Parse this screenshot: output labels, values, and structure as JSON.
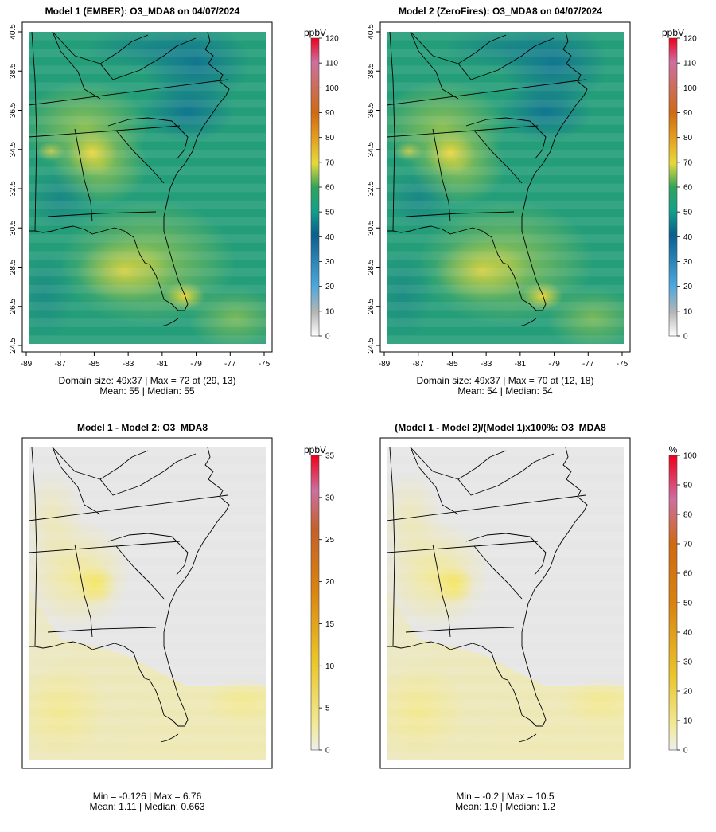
{
  "chart_data": [
    {
      "type": "heatmap",
      "title": "Model 1 (EMBER): O3_MDA8 on 04/07/2024",
      "grid_cols": 49,
      "grid_rows": 37,
      "lon_range": [
        -89,
        -75
      ],
      "lat_range": [
        24.5,
        40.5
      ],
      "x_ticks": [
        "-89",
        "-87",
        "-85",
        "-83",
        "-81",
        "-79",
        "-77",
        "-75"
      ],
      "y_ticks": [
        "24.5",
        "26.5",
        "28.5",
        "30.5",
        "32.5",
        "34.5",
        "36.5",
        "38.5",
        "40.5"
      ],
      "colorbar": {
        "unit": "ppbV",
        "range": [
          0,
          120
        ],
        "ticks": [
          "0",
          "10",
          "20",
          "30",
          "40",
          "50",
          "60",
          "70",
          "80",
          "90",
          "100",
          "110",
          "120"
        ]
      },
      "stats_line1": "Domain size: 49x37 | Max = 72 at (29, 13)",
      "stats_line2": "Mean: 55 |  Median: 55",
      "max": 72,
      "max_at": [
        29,
        13
      ],
      "mean": 55,
      "median": 55
    },
    {
      "type": "heatmap",
      "title": "Model 2 (ZeroFires): O3_MDA8 on 04/07/2024",
      "grid_cols": 49,
      "grid_rows": 37,
      "lon_range": [
        -89,
        -75
      ],
      "lat_range": [
        24.5,
        40.5
      ],
      "x_ticks": [
        "-89",
        "-87",
        "-85",
        "-83",
        "-81",
        "-79",
        "-77",
        "-75"
      ],
      "y_ticks": [
        "24.5",
        "26.5",
        "28.5",
        "30.5",
        "32.5",
        "34.5",
        "36.5",
        "38.5",
        "40.5"
      ],
      "colorbar": {
        "unit": "ppbV",
        "range": [
          0,
          120
        ],
        "ticks": [
          "0",
          "10",
          "20",
          "30",
          "40",
          "50",
          "60",
          "70",
          "80",
          "90",
          "100",
          "110",
          "120"
        ]
      },
      "stats_line1": "Domain size: 49x37 | Max = 70 at (12, 18)",
      "stats_line2": "Mean: 54 |  Median: 54",
      "max": 70,
      "max_at": [
        12,
        18
      ],
      "mean": 54,
      "median": 54
    },
    {
      "type": "heatmap",
      "title": "Model 1 - Model 2: O3_MDA8",
      "grid_cols": 49,
      "grid_rows": 37,
      "colorbar": {
        "unit": "ppbV",
        "range": [
          0,
          35
        ],
        "ticks": [
          "0",
          "5",
          "10",
          "15",
          "20",
          "25",
          "30",
          "35"
        ]
      },
      "stats_line1": "Min = -0.126 | Max = 6.76",
      "stats_line2": "Mean: 1.11 |  Median: 0.663",
      "min": -0.126,
      "max": 6.76,
      "mean": 1.11,
      "median": 0.663
    },
    {
      "type": "heatmap",
      "title": "(Model 1 - Model 2)/(Model 1)x100%: O3_MDA8",
      "grid_cols": 49,
      "grid_rows": 37,
      "colorbar": {
        "unit": "%",
        "range": [
          0,
          100
        ],
        "ticks": [
          "0",
          "10",
          "20",
          "30",
          "40",
          "50",
          "60",
          "70",
          "80",
          "90",
          "100"
        ]
      },
      "stats_line1": "Min = -0.2 | Max = 10.5",
      "stats_line2": "Mean: 1.9 |  Median: 1.2",
      "min": -0.2,
      "max": 10.5,
      "mean": 1.9,
      "median": 1.2
    }
  ],
  "colors": {
    "scale": [
      "#ffffff",
      "#b5b5b5",
      "#4aa8de",
      "#0a5f8e",
      "#13a08a",
      "#2fa45a",
      "#e7d93a",
      "#e39b1f",
      "#d06a12",
      "#cd6fa0",
      "#f0001a"
    ],
    "diff_background": "#e6e6e6",
    "diff_low": "#ebebd2",
    "diff_high": "#f2e04a"
  }
}
